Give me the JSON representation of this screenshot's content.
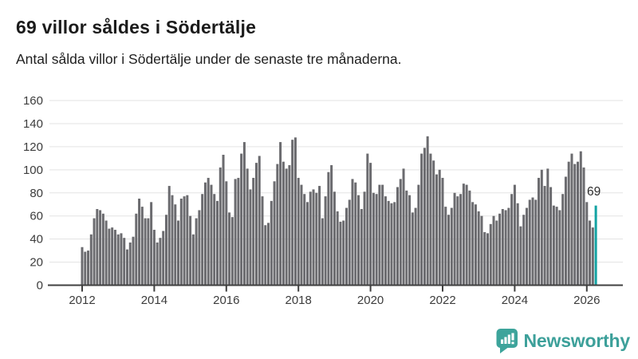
{
  "header": {
    "title": "69 villor såldes i Södertälje",
    "subtitle": "Antal sålda villor i Södertälje under de senaste tre månaderna."
  },
  "chart_data": {
    "type": "bar",
    "title": "69 villor såldes i Södertälje",
    "subtitle": "Antal sålda villor i Södertälje under de senaste tre månaderna.",
    "x_frequency": "monthly",
    "x_start": "2012-01",
    "x_end": "2026-04",
    "values": [
      33,
      29,
      30,
      44,
      58,
      66,
      65,
      62,
      56,
      49,
      50,
      48,
      44,
      45,
      41,
      31,
      37,
      42,
      62,
      75,
      68,
      58,
      58,
      72,
      48,
      37,
      41,
      47,
      61,
      86,
      78,
      70,
      56,
      75,
      77,
      78,
      60,
      44,
      58,
      65,
      79,
      89,
      93,
      87,
      79,
      73,
      102,
      113,
      90,
      63,
      59,
      92,
      93,
      114,
      124,
      101,
      83,
      93,
      106,
      112,
      77,
      52,
      54,
      73,
      90,
      105,
      124,
      107,
      101,
      104,
      126,
      128,
      93,
      87,
      79,
      72,
      81,
      83,
      80,
      86,
      58,
      77,
      98,
      104,
      81,
      64,
      55,
      56,
      67,
      74,
      92,
      89,
      78,
      66,
      81,
      114,
      106,
      80,
      79,
      87,
      87,
      77,
      73,
      71,
      72,
      85,
      92,
      101,
      82,
      78,
      63,
      67,
      87,
      114,
      119,
      129,
      114,
      108,
      96,
      100,
      93,
      68,
      61,
      67,
      80,
      77,
      79,
      88,
      87,
      82,
      72,
      70,
      64,
      60,
      46,
      45,
      53,
      60,
      56,
      62,
      66,
      65,
      67,
      79,
      87,
      71,
      51,
      61,
      67,
      74,
      76,
      74,
      93,
      100,
      86,
      101,
      85,
      69,
      68,
      65,
      79,
      94,
      107,
      114,
      105,
      107,
      116,
      102,
      72,
      56,
      50,
      69
    ],
    "highlight_last": true,
    "highlight_value": 69,
    "highlight_label": "69",
    "ylim": [
      0,
      160
    ],
    "ytick_labels": [
      "0",
      "20",
      "40",
      "60",
      "80",
      "100",
      "120",
      "140",
      "160"
    ],
    "xtick_labels": [
      "2012",
      "2014",
      "2016",
      "2018",
      "2020",
      "2022",
      "2024",
      "2026"
    ],
    "grid": true,
    "legend": false,
    "bar_color": "#6b6b6f",
    "highlight_color": "#12a2a2",
    "axis_color": "#404040",
    "grid_color": "#e3e3e3",
    "tick_text_color": "#3c3c3c",
    "annotation_color": "#2d2d2d"
  },
  "branding": {
    "name": "Newsworthy",
    "color": "#3da09a",
    "icon": "bar-chart-speech-bubble-icon"
  }
}
